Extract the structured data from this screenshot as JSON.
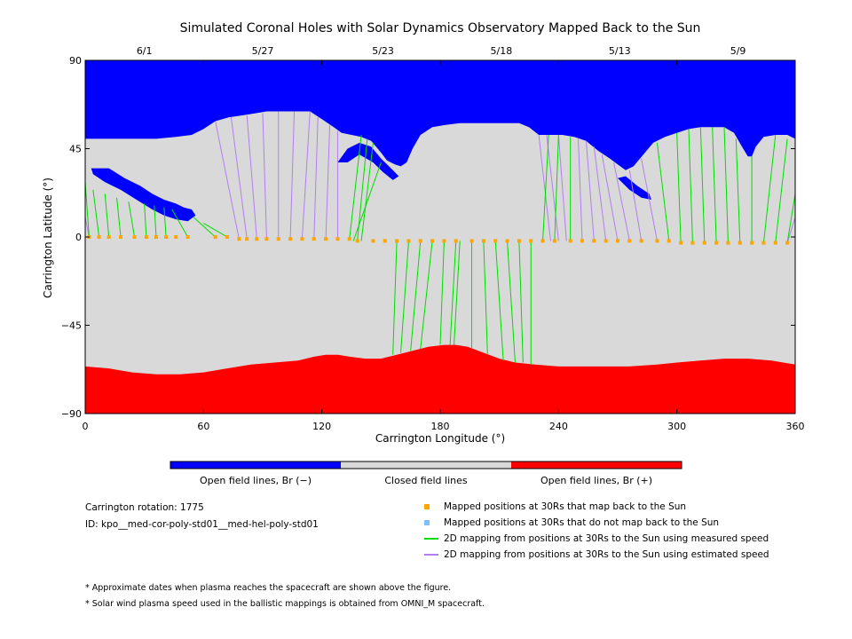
{
  "chart_data": {
    "type": "map",
    "title": "Simulated Coronal Holes with Solar Dynamics Observatory Mapped Back to the Sun",
    "xlabel": "Carrington Longitude (°)",
    "ylabel": "Carrington Latitude (°)",
    "xlim": [
      0,
      360
    ],
    "ylim": [
      -90,
      90
    ],
    "x_ticks": [
      0,
      60,
      120,
      180,
      240,
      300,
      360
    ],
    "x_tick_labels": [
      "0",
      "60",
      "120",
      "180",
      "240",
      "300",
      "360"
    ],
    "y_ticks": [
      90,
      45,
      0,
      -45,
      -90
    ],
    "y_tick_labels": [
      "90",
      "45",
      "0",
      "−45",
      "−90"
    ],
    "top_date_ticks": [
      {
        "label": "6/1",
        "lon": 30
      },
      {
        "label": "5/27",
        "lon": 90
      },
      {
        "label": "5/23",
        "lon": 151
      },
      {
        "label": "5/18",
        "lon": 211
      },
      {
        "label": "5/13",
        "lon": 271
      },
      {
        "label": "5/9",
        "lon": 331
      }
    ],
    "colors": {
      "open_negative": "#0000ff",
      "closed": "#d9d9d9",
      "open_positive": "#ff0000",
      "mapped_point": "#ffa500",
      "measured_speed": "#00dd00",
      "estimated_speed": "#b27fef"
    },
    "north_hole_boundary": [
      [
        0,
        50
      ],
      [
        5,
        50
      ],
      [
        12,
        50
      ],
      [
        20,
        50
      ],
      [
        28,
        50
      ],
      [
        36,
        50
      ],
      [
        46,
        51
      ],
      [
        54,
        52
      ],
      [
        60,
        55
      ],
      [
        66,
        59
      ],
      [
        73,
        61
      ],
      [
        80,
        62
      ],
      [
        86,
        63
      ],
      [
        92,
        64
      ],
      [
        100,
        64
      ],
      [
        106,
        64
      ],
      [
        114,
        64
      ],
      [
        120,
        60
      ],
      [
        126,
        56
      ],
      [
        130,
        53
      ],
      [
        135,
        52
      ],
      [
        140,
        51
      ],
      [
        145,
        49
      ],
      [
        150,
        43
      ],
      [
        153,
        39
      ],
      [
        157,
        37
      ],
      [
        160,
        36
      ],
      [
        163,
        38
      ],
      [
        166,
        45
      ],
      [
        170,
        52
      ],
      [
        176,
        56
      ],
      [
        182,
        57
      ],
      [
        190,
        58
      ],
      [
        200,
        58
      ],
      [
        210,
        58
      ],
      [
        220,
        58
      ],
      [
        225,
        56
      ],
      [
        230,
        52
      ],
      [
        236,
        52
      ],
      [
        242,
        52
      ],
      [
        248,
        51
      ],
      [
        254,
        49
      ],
      [
        260,
        44
      ],
      [
        266,
        40
      ],
      [
        270,
        37
      ],
      [
        274,
        34
      ],
      [
        278,
        36
      ],
      [
        283,
        42
      ],
      [
        288,
        48
      ],
      [
        294,
        51
      ],
      [
        300,
        53
      ],
      [
        306,
        55
      ],
      [
        312,
        56
      ],
      [
        318,
        56
      ],
      [
        324,
        56
      ],
      [
        329,
        53
      ],
      [
        333,
        46
      ],
      [
        336,
        41
      ],
      [
        338,
        41
      ],
      [
        340,
        46
      ],
      [
        344,
        51
      ],
      [
        350,
        52
      ],
      [
        356,
        52
      ],
      [
        360,
        50
      ]
    ],
    "south_hole_boundary": [
      [
        0,
        -66
      ],
      [
        12,
        -67
      ],
      [
        24,
        -69
      ],
      [
        36,
        -70
      ],
      [
        48,
        -70
      ],
      [
        60,
        -69
      ],
      [
        72,
        -67
      ],
      [
        84,
        -65
      ],
      [
        96,
        -64
      ],
      [
        108,
        -63
      ],
      [
        116,
        -61
      ],
      [
        122,
        -60
      ],
      [
        128,
        -60
      ],
      [
        134,
        -61
      ],
      [
        142,
        -62
      ],
      [
        150,
        -62
      ],
      [
        158,
        -60
      ],
      [
        166,
        -58
      ],
      [
        174,
        -56
      ],
      [
        182,
        -55
      ],
      [
        188,
        -55
      ],
      [
        194,
        -56
      ],
      [
        202,
        -59
      ],
      [
        210,
        -62
      ],
      [
        218,
        -64
      ],
      [
        228,
        -65
      ],
      [
        240,
        -66
      ],
      [
        252,
        -66
      ],
      [
        264,
        -66
      ],
      [
        276,
        -66
      ],
      [
        290,
        -65
      ],
      [
        300,
        -64
      ],
      [
        312,
        -63
      ],
      [
        324,
        -62
      ],
      [
        336,
        -62
      ],
      [
        348,
        -63
      ],
      [
        360,
        -65
      ]
    ],
    "negative_patches": [
      [
        [
          3,
          35
        ],
        [
          12,
          35
        ],
        [
          20,
          30
        ],
        [
          28,
          26
        ],
        [
          34,
          22
        ],
        [
          40,
          19
        ],
        [
          46,
          17
        ],
        [
          50,
          15
        ],
        [
          54,
          14
        ],
        [
          56,
          11
        ],
        [
          52,
          8
        ],
        [
          46,
          9
        ],
        [
          40,
          11
        ],
        [
          34,
          14
        ],
        [
          26,
          19
        ],
        [
          18,
          24
        ],
        [
          10,
          28
        ],
        [
          4,
          32
        ]
      ],
      [
        [
          128,
          38
        ],
        [
          133,
          45
        ],
        [
          139,
          48
        ],
        [
          145,
          46
        ],
        [
          150,
          40
        ],
        [
          156,
          34
        ],
        [
          159,
          31
        ],
        [
          156,
          29
        ],
        [
          151,
          33
        ],
        [
          146,
          38
        ],
        [
          139,
          42
        ],
        [
          133,
          38
        ]
      ],
      [
        [
          270,
          30
        ],
        [
          276,
          24
        ],
        [
          282,
          20
        ],
        [
          287,
          19
        ],
        [
          286,
          22
        ],
        [
          280,
          26
        ],
        [
          274,
          31
        ]
      ]
    ],
    "mapped_points": [
      [
        2,
        0
      ],
      [
        7,
        0
      ],
      [
        12,
        0
      ],
      [
        18,
        0
      ],
      [
        25,
        0
      ],
      [
        31,
        0
      ],
      [
        36,
        0
      ],
      [
        41,
        0
      ],
      [
        46,
        0
      ],
      [
        52,
        0
      ],
      [
        66,
        0
      ],
      [
        72,
        0
      ],
      [
        78,
        -1
      ],
      [
        82,
        -1
      ],
      [
        87,
        -1
      ],
      [
        92,
        -1
      ],
      [
        98,
        -1
      ],
      [
        104,
        -1
      ],
      [
        110,
        -1
      ],
      [
        116,
        -1
      ],
      [
        122,
        -1
      ],
      [
        128,
        -1
      ],
      [
        134,
        -1
      ],
      [
        138,
        -2
      ],
      [
        146,
        -2
      ],
      [
        152,
        -2
      ],
      [
        158,
        -2
      ],
      [
        164,
        -2
      ],
      [
        170,
        -2
      ],
      [
        176,
        -2
      ],
      [
        182,
        -2
      ],
      [
        188,
        -2
      ],
      [
        196,
        -2
      ],
      [
        202,
        -2
      ],
      [
        208,
        -2
      ],
      [
        214,
        -2
      ],
      [
        220,
        -2
      ],
      [
        226,
        -2
      ],
      [
        232,
        -2
      ],
      [
        238,
        -2
      ],
      [
        246,
        -2
      ],
      [
        252,
        -2
      ],
      [
        258,
        -2
      ],
      [
        264,
        -2
      ],
      [
        270,
        -2
      ],
      [
        276,
        -2
      ],
      [
        282,
        -2
      ],
      [
        290,
        -2
      ],
      [
        296,
        -2
      ],
      [
        302,
        -3
      ],
      [
        308,
        -3
      ],
      [
        314,
        -3
      ],
      [
        320,
        -3
      ],
      [
        326,
        -3
      ],
      [
        332,
        -3
      ],
      [
        338,
        -3
      ],
      [
        344,
        -3
      ],
      [
        350,
        -3
      ],
      [
        356,
        -3
      ]
    ],
    "measured_lines": [
      [
        [
          2,
          0
        ],
        [
          0,
          28
        ]
      ],
      [
        [
          7,
          0
        ],
        [
          4,
          24
        ]
      ],
      [
        [
          12,
          0
        ],
        [
          10,
          22
        ]
      ],
      [
        [
          18,
          0
        ],
        [
          16,
          20
        ]
      ],
      [
        [
          25,
          0
        ],
        [
          22,
          18
        ]
      ],
      [
        [
          31,
          0
        ],
        [
          30,
          17
        ]
      ],
      [
        [
          36,
          0
        ],
        [
          35,
          16
        ]
      ],
      [
        [
          41,
          0
        ],
        [
          40,
          15
        ]
      ],
      [
        [
          52,
          0
        ],
        [
          44,
          14
        ]
      ],
      [
        [
          66,
          0
        ],
        [
          55,
          10
        ]
      ],
      [
        [
          72,
          0
        ],
        [
          60,
          7
        ]
      ],
      [
        [
          134,
          -1
        ],
        [
          140,
          52
        ]
      ],
      [
        [
          138,
          -2
        ],
        [
          143,
          50
        ]
      ],
      [
        [
          140,
          -2
        ],
        [
          146,
          48
        ]
      ],
      [
        [
          136,
          -2
        ],
        [
          150,
          38
        ]
      ],
      [
        [
          158,
          -2
        ],
        [
          156,
          -60
        ]
      ],
      [
        [
          164,
          -2
        ],
        [
          160,
          -59
        ]
      ],
      [
        [
          170,
          -2
        ],
        [
          165,
          -58
        ]
      ],
      [
        [
          176,
          -2
        ],
        [
          170,
          -57
        ]
      ],
      [
        [
          182,
          -2
        ],
        [
          180,
          -55
        ]
      ],
      [
        [
          188,
          -2
        ],
        [
          185,
          -55
        ]
      ],
      [
        [
          190,
          -2
        ],
        [
          187,
          -55
        ]
      ],
      [
        [
          196,
          -2
        ],
        [
          196,
          -57
        ]
      ],
      [
        [
          202,
          -2
        ],
        [
          204,
          -60
        ]
      ],
      [
        [
          208,
          -2
        ],
        [
          212,
          -63
        ]
      ],
      [
        [
          214,
          -2
        ],
        [
          218,
          -64
        ]
      ],
      [
        [
          220,
          -2
        ],
        [
          222,
          -64
        ]
      ],
      [
        [
          226,
          -2
        ],
        [
          226,
          -65
        ]
      ],
      [
        [
          232,
          -2
        ],
        [
          235,
          52
        ]
      ],
      [
        [
          238,
          -2
        ],
        [
          240,
          52
        ]
      ],
      [
        [
          246,
          -2
        ],
        [
          246,
          51
        ]
      ],
      [
        [
          296,
          -2
        ],
        [
          290,
          48
        ]
      ],
      [
        [
          302,
          -3
        ],
        [
          300,
          53
        ]
      ],
      [
        [
          308,
          -3
        ],
        [
          306,
          55
        ]
      ],
      [
        [
          314,
          -3
        ],
        [
          312,
          56
        ]
      ],
      [
        [
          320,
          -3
        ],
        [
          318,
          56
        ]
      ],
      [
        [
          326,
          -3
        ],
        [
          324,
          56
        ]
      ],
      [
        [
          332,
          -3
        ],
        [
          330,
          50
        ]
      ],
      [
        [
          338,
          -3
        ],
        [
          338,
          41
        ]
      ],
      [
        [
          344,
          -3
        ],
        [
          350,
          52
        ]
      ],
      [
        [
          350,
          -3
        ],
        [
          356,
          50
        ]
      ],
      [
        [
          356,
          -3
        ],
        [
          360,
          22
        ]
      ]
    ],
    "estimated_lines": [
      [
        [
          2,
          0
        ],
        [
          0,
          10
        ]
      ],
      [
        [
          78,
          -1
        ],
        [
          66,
          59
        ]
      ],
      [
        [
          82,
          -1
        ],
        [
          74,
          61
        ]
      ],
      [
        [
          87,
          -1
        ],
        [
          82,
          62
        ]
      ],
      [
        [
          92,
          -1
        ],
        [
          90,
          63
        ]
      ],
      [
        [
          98,
          -1
        ],
        [
          98,
          64
        ]
      ],
      [
        [
          104,
          -1
        ],
        [
          106,
          64
        ]
      ],
      [
        [
          110,
          -1
        ],
        [
          114,
          64
        ]
      ],
      [
        [
          116,
          -1
        ],
        [
          118,
          61
        ]
      ],
      [
        [
          122,
          -1
        ],
        [
          124,
          57
        ]
      ],
      [
        [
          128,
          -1
        ],
        [
          128,
          54
        ]
      ],
      [
        [
          236,
          -2
        ],
        [
          230,
          52
        ]
      ],
      [
        [
          240,
          -2
        ],
        [
          234,
          52
        ]
      ],
      [
        [
          244,
          -2
        ],
        [
          240,
          52
        ]
      ],
      [
        [
          252,
          -2
        ],
        [
          250,
          50
        ]
      ],
      [
        [
          258,
          -2
        ],
        [
          254,
          49
        ]
      ],
      [
        [
          264,
          -2
        ],
        [
          258,
          46
        ]
      ],
      [
        [
          270,
          -2
        ],
        [
          262,
          42
        ]
      ],
      [
        [
          276,
          -2
        ],
        [
          268,
          38
        ]
      ],
      [
        [
          282,
          -2
        ],
        [
          276,
          34
        ]
      ],
      [
        [
          290,
          -2
        ],
        [
          282,
          40
        ]
      ],
      [
        [
          356,
          -3
        ],
        [
          360,
          10
        ]
      ]
    ],
    "colorbar": {
      "segments": [
        {
          "label": "Open field lines, Br (−)",
          "color": "#0000ff"
        },
        {
          "label": "Closed field lines",
          "color": "#d9d9d9"
        },
        {
          "label": "Open field lines, Br (+)",
          "color": "#ff0000"
        }
      ]
    }
  },
  "info": {
    "rotation": "Carrington rotation: 1775",
    "id": "ID: kpo__med-cor-poly-std01__med-hel-poly-std01"
  },
  "legend": [
    {
      "label": "Mapped positions at 30Rs that map back to the Sun",
      "color": "#ffa500",
      "shape": "square"
    },
    {
      "label": "Mapped positions at 30Rs that do not map back to the Sun",
      "color": "#7fbfff",
      "shape": "square"
    },
    {
      "label": "2D mapping from positions at 30Rs to the Sun using measured speed",
      "color": "#00dd00",
      "shape": "line"
    },
    {
      "label": "2D mapping from positions at 30Rs to the Sun using estimated speed",
      "color": "#b27fef",
      "shape": "line"
    }
  ],
  "notes": [
    "* Approximate dates when plasma reaches the spacecraft are shown above the figure.",
    "* Solar wind plasma speed used in the ballistic mappings is obtained from OMNI_M spacecraft."
  ]
}
